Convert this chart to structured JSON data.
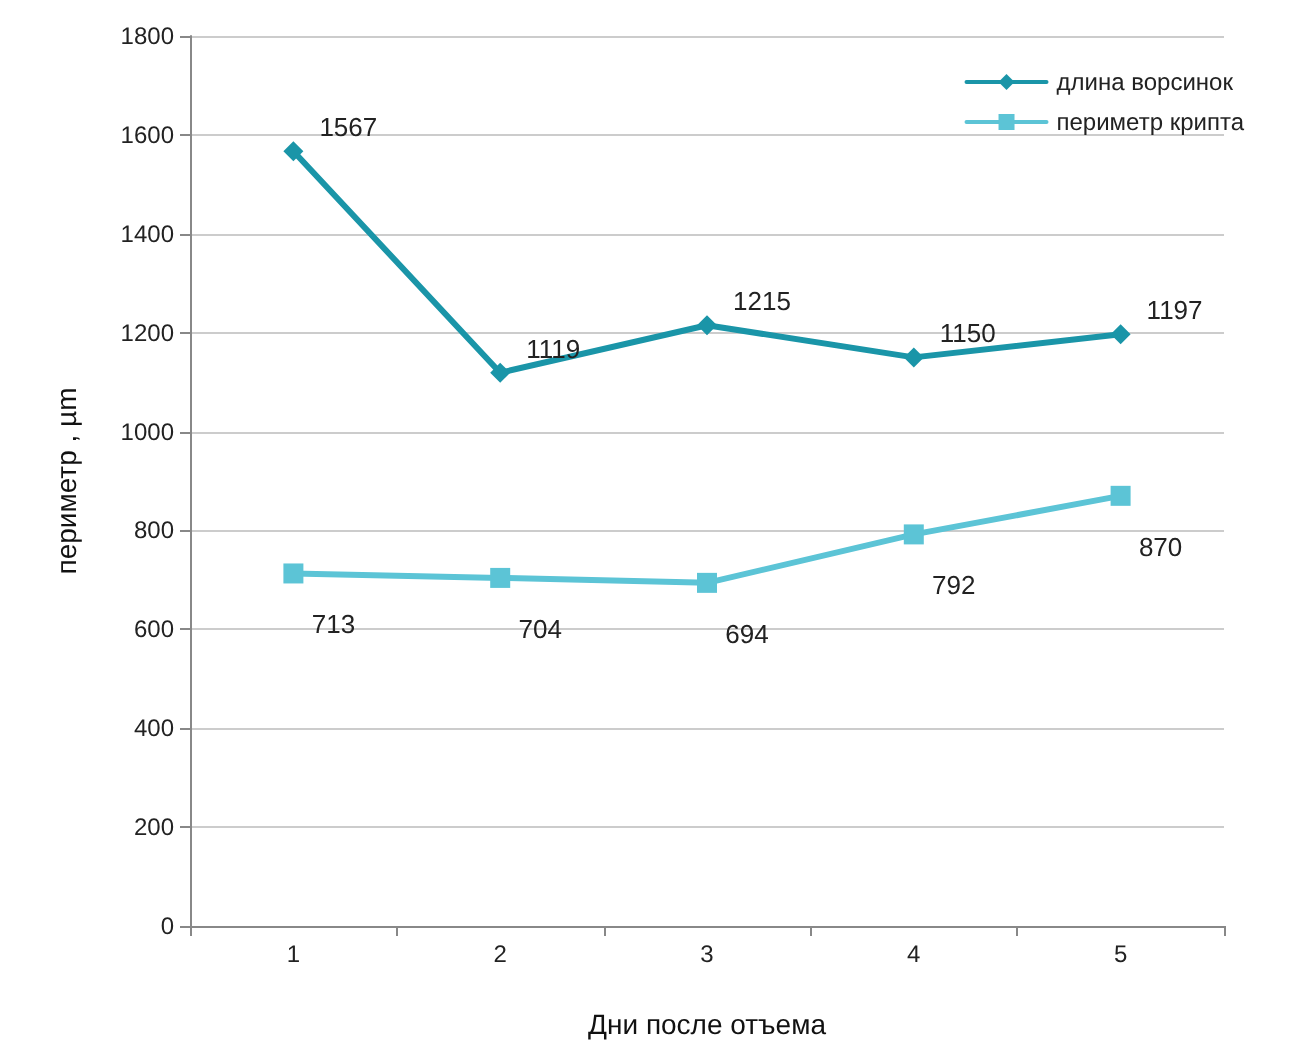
{
  "chart_data": {
    "type": "line",
    "xlabel": "Дни после отъема",
    "ylabel": "периметр , µm",
    "categories": [
      "1",
      "2",
      "3",
      "4",
      "5"
    ],
    "series": [
      {
        "name": "длина ворсинок",
        "color": "#1a95a8",
        "marker": "diamond",
        "values": [
          1567,
          1119,
          1215,
          1150,
          1197
        ]
      },
      {
        "name": "периметр крипта",
        "color": "#5cc4d6",
        "marker": "square",
        "values": [
          713,
          704,
          694,
          792,
          870
        ]
      }
    ],
    "ylim": [
      0,
      1800
    ],
    "yticks": [
      0,
      200,
      400,
      600,
      800,
      1000,
      1200,
      1400,
      1600,
      1800
    ],
    "grid": "y",
    "legend": "top right",
    "data_labels": true
  }
}
